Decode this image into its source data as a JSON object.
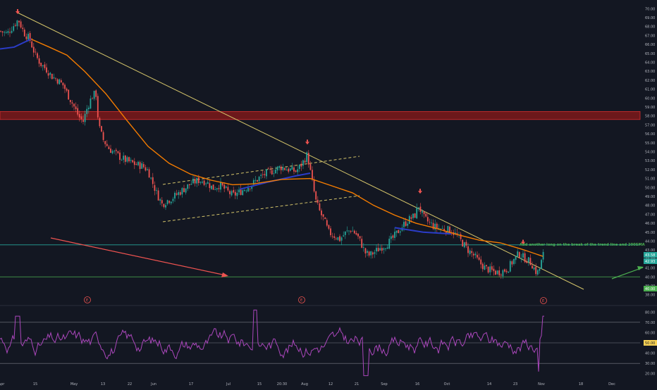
{
  "chart_data": [
    {
      "type": "candlestick",
      "panel": "price",
      "annotation": "Add another long on the break of the trend line and 200SMA",
      "y_ticks": [
        "70.00",
        "69.00",
        "68.00",
        "67.00",
        "66.00",
        "65.00",
        "64.00",
        "63.00",
        "62.00",
        "61.00",
        "60.00",
        "59.00",
        "58.00",
        "57.00",
        "56.00",
        "55.00",
        "54.00",
        "53.00",
        "52.00",
        "51.00",
        "50.00",
        "49.00",
        "48.00",
        "47.00",
        "46.00",
        "45.00",
        "44.00",
        "43.00",
        "42.00",
        "41.00",
        "40.00",
        "39.00",
        "38.00"
      ],
      "ylim": [
        37.5,
        70.5
      ],
      "price_badges": [
        {
          "value": "43.58",
          "color": "#26a69a"
        },
        {
          "value": "42.93",
          "color": "#26a69a"
        },
        {
          "value": "40.00",
          "color": "#4caf50"
        }
      ],
      "x_ticks": [
        "Apr",
        "15",
        "May",
        "13",
        "22",
        "Jun",
        "17",
        "Jul",
        "15",
        "20:30",
        "Aug",
        "12",
        "21",
        "Sep",
        "16",
        "Oct",
        "14",
        "23",
        "Nov",
        "18",
        "Dec"
      ],
      "horizontal_zone": [
        57.6,
        58.5
      ],
      "horizontal_lines": [
        43.58,
        40.0
      ],
      "earnings_markers": [
        "E",
        "E",
        "E"
      ],
      "colors": {
        "up": "#26a69a",
        "down": "#ef5350",
        "sma": "#f57c00",
        "trendline": "#d4c46a",
        "zone": "#8b1a1a",
        "annotation": "#4caf50",
        "arrow_red": "#ef5350",
        "arrow_green": "#4caf50",
        "short_ma": "#2b3cc8"
      }
    },
    {
      "type": "line",
      "panel": "rsi",
      "y_ticks": [
        "80.00",
        "70.00",
        "60.00",
        "50.00",
        "40.00",
        "30.00",
        "20.00"
      ],
      "ylim": [
        15,
        85
      ],
      "levels": [
        70,
        50,
        30
      ],
      "badge": "50.00",
      "colors": {
        "line": "#ab47bc",
        "badge_bg": "#f7d154",
        "levels": "#787b86"
      }
    }
  ]
}
